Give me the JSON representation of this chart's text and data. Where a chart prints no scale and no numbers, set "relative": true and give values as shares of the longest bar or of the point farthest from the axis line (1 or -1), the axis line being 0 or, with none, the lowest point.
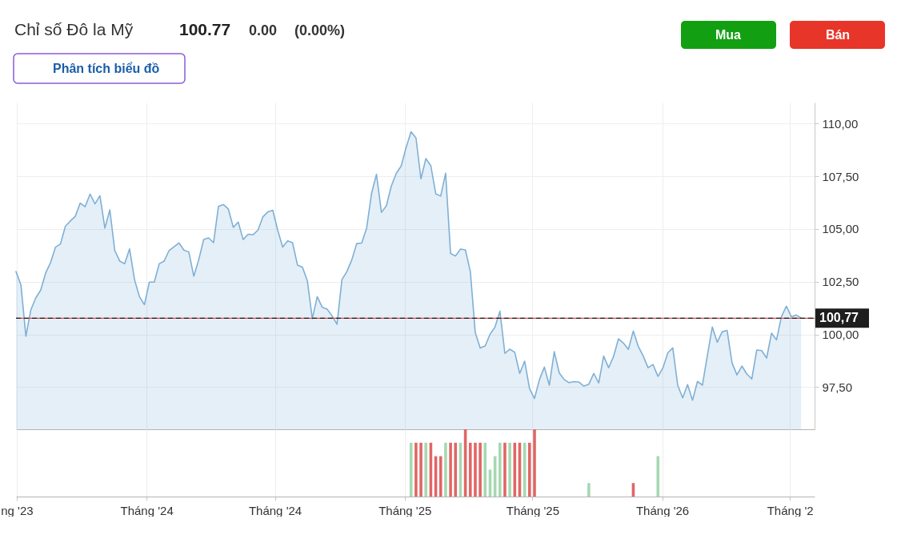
{
  "chart_data": [
    {
      "type": "area",
      "title": "Chỉ số Đô la Mỹ",
      "annotations": [
        "100.77",
        "0.00",
        "(0.00%)",
        "Phân tích biểu đồ",
        "Mua",
        "Bán"
      ],
      "x": [
        "2023-06-30",
        "2023-07-07",
        "2023-07-14",
        "2023-07-21",
        "2023-07-28",
        "2023-08-04",
        "2023-08-11",
        "2023-08-18",
        "2023-08-25",
        "2023-09-01",
        "2023-09-08",
        "2023-09-15",
        "2023-09-22",
        "2023-09-29",
        "2023-10-06",
        "2023-10-13",
        "2023-10-20",
        "2023-10-27",
        "2023-11-03",
        "2023-11-10",
        "2023-11-17",
        "2023-11-24",
        "2023-12-01",
        "2023-12-08",
        "2023-12-15",
        "2023-12-22",
        "2023-12-29",
        "2024-01-05",
        "2024-01-12",
        "2024-01-19",
        "2024-01-26",
        "2024-02-02",
        "2024-02-09",
        "2024-02-16",
        "2024-02-23",
        "2024-03-01",
        "2024-03-08",
        "2024-03-15",
        "2024-03-22",
        "2024-03-29",
        "2024-04-05",
        "2024-04-12",
        "2024-04-19",
        "2024-04-26",
        "2024-05-03",
        "2024-05-10",
        "2024-05-17",
        "2024-05-24",
        "2024-05-31",
        "2024-06-07",
        "2024-06-14",
        "2024-06-21",
        "2024-06-28",
        "2024-07-05",
        "2024-07-12",
        "2024-07-19",
        "2024-07-26",
        "2024-08-02",
        "2024-08-09",
        "2024-08-16",
        "2024-08-23",
        "2024-08-30",
        "2024-09-06",
        "2024-09-13",
        "2024-09-20",
        "2024-09-27",
        "2024-10-04",
        "2024-10-11",
        "2024-10-18",
        "2024-10-25",
        "2024-11-01",
        "2024-11-08",
        "2024-11-15",
        "2024-11-22",
        "2024-11-29",
        "2024-12-06",
        "2024-12-13",
        "2024-12-20",
        "2024-12-27",
        "2025-01-03",
        "2025-01-10",
        "2025-01-17",
        "2025-01-24",
        "2025-01-31",
        "2025-02-07",
        "2025-02-14",
        "2025-02-21",
        "2025-02-28",
        "2025-03-07",
        "2025-03-14",
        "2025-03-21",
        "2025-03-28",
        "2025-04-04",
        "2025-04-11",
        "2025-04-18",
        "2025-04-25",
        "2025-05-02",
        "2025-05-09",
        "2025-05-16",
        "2025-05-23",
        "2025-05-30",
        "2025-06-06",
        "2025-06-13",
        "2025-06-20",
        "2025-06-27",
        "2025-07-04",
        "2025-07-11",
        "2025-07-18",
        "2025-07-25",
        "2025-08-01",
        "2025-08-08",
        "2025-08-15",
        "2025-08-22",
        "2025-08-29",
        "2025-09-05",
        "2025-09-12",
        "2025-09-19",
        "2025-09-26",
        "2025-10-03",
        "2025-10-10",
        "2025-10-17",
        "2025-10-24",
        "2025-10-31",
        "2025-11-07",
        "2025-11-14",
        "2025-11-21",
        "2025-11-28",
        "2025-12-05",
        "2025-12-12",
        "2025-12-19",
        "2025-12-26",
        "2026-01-02",
        "2026-01-09",
        "2026-01-16",
        "2026-01-23",
        "2026-01-30",
        "2026-02-06",
        "2026-02-13",
        "2026-02-20",
        "2026-02-27",
        "2026-03-06",
        "2026-03-13",
        "2026-03-20",
        "2026-03-27",
        "2026-04-03",
        "2026-04-10",
        "2026-04-17",
        "2026-04-24",
        "2026-05-01",
        "2026-05-08",
        "2026-05-15",
        "2026-05-22",
        "2026-05-29",
        "2026-06-05",
        "2026-06-12",
        "2026-06-19",
        "2026-06-26",
        "2026-07-03",
        "2026-07-10",
        "2026-07-17"
      ],
      "series": [
        {
          "color": "#7eb0d6",
          "values": [
            102.98,
            102.35,
            99.91,
            101.16,
            101.73,
            102.1,
            102.91,
            103.41,
            104.14,
            104.29,
            105.13,
            105.38,
            105.6,
            106.23,
            106.06,
            106.66,
            106.19,
            106.58,
            105.04,
            105.91,
            103.98,
            103.48,
            103.35,
            104.06,
            102.6,
            101.79,
            101.41,
            102.48,
            102.48,
            103.35,
            103.48,
            103.98,
            104.16,
            104.34,
            104.0,
            103.91,
            102.76,
            103.54,
            104.5,
            104.58,
            104.35,
            106.08,
            106.16,
            105.95,
            105.08,
            105.33,
            104.5,
            104.75,
            104.73,
            104.95,
            105.58,
            105.81,
            105.89,
            104.94,
            104.14,
            104.44,
            104.35,
            103.29,
            103.19,
            102.54,
            100.75,
            101.79,
            101.29,
            101.2,
            100.88,
            100.48,
            102.6,
            102.98,
            103.54,
            104.31,
            104.33,
            105.04,
            106.69,
            107.6,
            105.79,
            106.1,
            107.04,
            107.64,
            107.99,
            108.87,
            109.61,
            109.32,
            107.38,
            108.34,
            108.0,
            106.67,
            106.56,
            107.65,
            103.84,
            103.72,
            104.05,
            104.01,
            102.99,
            100.09,
            99.36,
            99.45,
            100.01,
            100.35,
            101.1,
            99.1,
            99.3,
            99.15,
            98.15,
            98.73,
            97.42,
            96.96,
            97.86,
            98.45,
            97.59,
            99.18,
            98.18,
            97.86,
            97.71,
            97.76,
            97.74,
            97.55,
            97.64,
            98.15,
            97.7,
            98.97,
            98.42,
            98.95,
            99.79,
            99.59,
            99.29,
            100.16,
            99.44,
            98.98,
            98.42,
            98.57,
            98.01,
            98.41,
            99.13,
            99.36,
            97.59,
            96.99,
            97.62,
            96.88,
            97.77,
            97.59,
            99.0,
            100.35,
            99.63,
            100.12,
            100.19,
            98.65,
            98.08,
            98.5,
            98.12,
            97.89,
            99.26,
            99.23,
            98.88,
            100.06,
            99.74,
            100.84,
            101.34,
            100.84,
            100.92,
            100.77
          ]
        }
      ],
      "xlim": [
        "2023-06-30",
        "2026-08-05"
      ],
      "xticks": [
        {
          "value": "2023-07-01",
          "label": null
        },
        {
          "value": "2024-01-01",
          "label": null
        },
        {
          "value": "2024-07-01",
          "label": null
        },
        {
          "value": "2025-01-01",
          "label": null
        },
        {
          "value": "2025-07-01",
          "label": null
        },
        {
          "value": "2026-01-01",
          "label": null
        },
        {
          "value": "2026-07-01",
          "label": null
        }
      ],
      "ylim": [
        95.5,
        111
      ],
      "yticks": [
        {
          "value": 97.5,
          "label": "97,50"
        },
        {
          "value": 100,
          "label": "100,00"
        },
        {
          "value": 102.5,
          "label": "102,50"
        },
        {
          "value": 105,
          "label": "105,00"
        },
        {
          "value": 107.5,
          "label": "107,50"
        },
        {
          "value": 110,
          "label": "110,00"
        }
      ],
      "grid": true,
      "tick_labels": "y",
      "ref_lines": [
        {
          "axis": "y",
          "value": 100.77,
          "color": "#e0474c",
          "line_style": "solid"
        },
        {
          "axis": "y",
          "value": 100.77,
          "label": "100,77",
          "color": "#1e1e1e",
          "line_style": "dashed"
        }
      ]
    },
    {
      "type": "bar",
      "relative": true,
      "x": [
        "2025-01-10",
        "2025-01-17",
        "2025-01-24",
        "2025-01-31",
        "2025-02-07",
        "2025-02-14",
        "2025-02-21",
        "2025-02-28",
        "2025-03-07",
        "2025-03-14",
        "2025-03-21",
        "2025-03-28",
        "2025-04-04",
        "2025-04-11",
        "2025-04-18",
        "2025-04-25",
        "2025-05-02",
        "2025-05-09",
        "2025-05-16",
        "2025-05-23",
        "2025-05-30",
        "2025-06-06",
        "2025-06-13",
        "2025-06-20",
        "2025-06-27",
        "2025-07-04",
        "2025-09-19",
        "2025-11-21",
        "2025-12-26"
      ],
      "values": [
        0.8,
        0.8,
        0.8,
        0.8,
        0.8,
        0.6,
        0.6,
        0.8,
        0.8,
        0.8,
        0.8,
        1,
        0.8,
        0.8,
        0.8,
        0.8,
        0.4,
        0.6,
        0.8,
        0.8,
        0.8,
        0.8,
        0.8,
        0.8,
        0.8,
        1,
        0.2,
        0.2,
        0.6
      ],
      "colors": [
        "#a6d8b2",
        "#e06666",
        "#e06666",
        "#a6d8b2",
        "#e06666",
        "#e06666",
        "#e06666",
        "#a6d8b2",
        "#e06666",
        "#e06666",
        "#a6d8b2",
        "#e06666",
        "#e06666",
        "#e06666",
        "#e06666",
        "#a6d8b2",
        "#a6d8b2",
        "#a6d8b2",
        "#a6d8b2",
        "#e06666",
        "#a6d8b2",
        "#e06666",
        "#e06666",
        "#a6d8b2",
        "#e06666",
        "#e06666",
        "#a6d8b2",
        "#e06666",
        "#a6d8b2"
      ],
      "xlim": [
        "2023-06-30",
        "2026-08-05"
      ],
      "xticks": [
        {
          "value": "2023-07-01",
          "label": "ng '23"
        },
        {
          "value": "2024-01-01",
          "label": "Tháng '24"
        },
        {
          "value": "2024-07-01",
          "label": "Tháng '24"
        },
        {
          "value": "2025-01-01",
          "label": "Tháng '25"
        },
        {
          "value": "2025-07-01",
          "label": "Tháng '25"
        },
        {
          "value": "2026-01-01",
          "label": "Tháng '26"
        },
        {
          "value": "2026-07-01",
          "label": "Tháng '2"
        }
      ],
      "grid": "x",
      "tick_labels": "x"
    }
  ]
}
